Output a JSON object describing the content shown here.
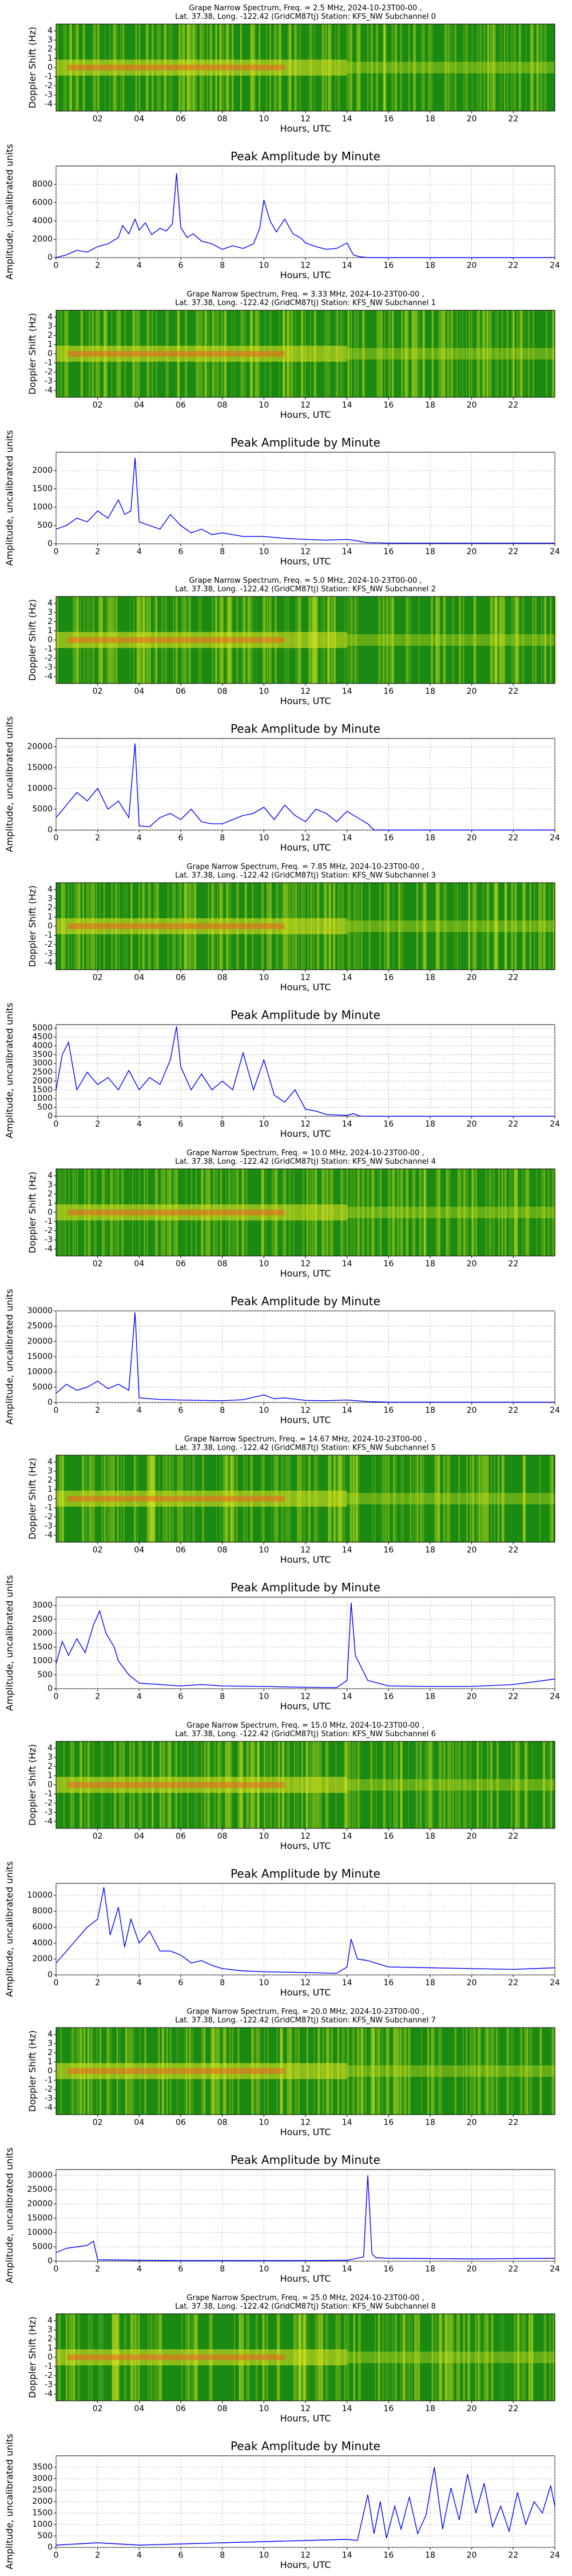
{
  "chart_data": [
    {
      "type": "heatmap",
      "title_line1": "Grape Narrow Spectrum, Freq. = 2.5 MHz, 2024-10-23T00-00 ,",
      "title_line2": "Lat. 37.38, Long. -122.42 (GridCM87tj) Station: KFS_NW Subchannel 0",
      "xlabel": "Hours, UTC",
      "ylabel": "Doppler Shift (Hz)",
      "xticks": [
        "02",
        "04",
        "06",
        "08",
        "10",
        "12",
        "14",
        "16",
        "18",
        "20",
        "22"
      ],
      "yticks": [
        "4",
        "3",
        "2",
        "1",
        "0",
        "-1",
        "-2",
        "-3",
        "-4"
      ],
      "xlim": [
        0,
        24
      ],
      "ylim": [
        -5,
        5
      ],
      "colors": {
        "low": "#108010",
        "mid": "#b8d810",
        "high": "#f0e020",
        "peak": "#f04010"
      }
    },
    {
      "type": "line",
      "title": "Peak Amplitude by Minute",
      "xlabel": "Hours, UTC",
      "ylabel": "Amplitude, uncalibrated units",
      "xlim": [
        0,
        24
      ],
      "ylim": [
        0,
        10000
      ],
      "yticks": [
        0,
        2000,
        4000,
        6000,
        8000
      ],
      "xticks": [
        0,
        2,
        4,
        6,
        8,
        10,
        12,
        14,
        16,
        18,
        20,
        22,
        24
      ],
      "grid": true,
      "line_color": "#0000ff",
      "x": [
        0,
        0.5,
        1,
        1.5,
        2,
        2.5,
        3,
        3.2,
        3.5,
        3.8,
        4,
        4.3,
        4.6,
        5,
        5.3,
        5.6,
        5.8,
        6,
        6.3,
        6.6,
        7,
        7.5,
        8,
        8.5,
        9,
        9.5,
        9.8,
        10,
        10.3,
        10.6,
        11,
        11.4,
        11.8,
        12,
        12.5,
        13,
        13.5,
        14,
        14.3,
        14.6,
        15,
        16,
        18,
        20,
        22,
        24
      ],
      "y": [
        0,
        300,
        800,
        600,
        1200,
        1500,
        2200,
        3500,
        2600,
        4200,
        3000,
        3800,
        2500,
        3200,
        2900,
        3700,
        9200,
        3300,
        2200,
        2600,
        1800,
        1500,
        900,
        1300,
        1000,
        1500,
        3200,
        6300,
        4000,
        2800,
        4200,
        2600,
        2100,
        1600,
        1200,
        900,
        1000,
        1600,
        300,
        100,
        0,
        0,
        0,
        0,
        0,
        0
      ]
    },
    {
      "type": "heatmap",
      "title_line1": "Grape Narrow Spectrum, Freq. = 3.33 MHz, 2024-10-23T00-00 ,",
      "title_line2": "Lat. 37.38, Long. -122.42 (GridCM87tj) Station: KFS_NW Subchannel 1",
      "xlabel": "Hours, UTC",
      "ylabel": "Doppler Shift (Hz)",
      "xticks": [
        "02",
        "04",
        "06",
        "08",
        "10",
        "12",
        "14",
        "16",
        "18",
        "20",
        "22"
      ],
      "yticks": [
        "4",
        "3",
        "2",
        "1",
        "0",
        "-1",
        "-2",
        "-3",
        "-4"
      ],
      "xlim": [
        0,
        24
      ],
      "ylim": [
        -5,
        5
      ]
    },
    {
      "type": "line",
      "title": "Peak Amplitude by Minute",
      "xlabel": "Hours, UTC",
      "ylabel": "Amplitude, uncalibrated units",
      "xlim": [
        0,
        24
      ],
      "ylim": [
        0,
        2500
      ],
      "yticks": [
        0,
        500,
        1000,
        1500,
        2000
      ],
      "xticks": [
        0,
        2,
        4,
        6,
        8,
        10,
        12,
        14,
        16,
        18,
        20,
        22,
        24
      ],
      "grid": true,
      "line_color": "#0000ff",
      "x": [
        0,
        0.5,
        1,
        1.5,
        2,
        2.5,
        3,
        3.3,
        3.6,
        3.8,
        4,
        4.5,
        5,
        5.5,
        6,
        6.5,
        7,
        7.5,
        8,
        9,
        10,
        11,
        12,
        13,
        14,
        14.5,
        15,
        16,
        18,
        20,
        22,
        24
      ],
      "y": [
        400,
        500,
        700,
        600,
        900,
        700,
        1200,
        800,
        900,
        2350,
        600,
        500,
        400,
        800,
        500,
        300,
        400,
        250,
        300,
        200,
        200,
        150,
        120,
        100,
        120,
        80,
        30,
        20,
        20,
        20,
        20,
        20
      ]
    },
    {
      "type": "heatmap",
      "title_line1": "Grape Narrow Spectrum, Freq. = 5.0 MHz, 2024-10-23T00-00 ,",
      "title_line2": "Lat. 37.38, Long. -122.42 (GridCM87tj) Station: KFS_NW Subchannel 2",
      "xlabel": "Hours, UTC",
      "ylabel": "Doppler Shift (Hz)",
      "xticks": [
        "02",
        "04",
        "06",
        "08",
        "10",
        "12",
        "14",
        "16",
        "18",
        "20",
        "22"
      ],
      "yticks": [
        "4",
        "3",
        "2",
        "1",
        "0",
        "-1",
        "-2",
        "-3",
        "-4"
      ],
      "xlim": [
        0,
        24
      ],
      "ylim": [
        -5,
        5
      ]
    },
    {
      "type": "line",
      "title": "Peak Amplitude by Minute",
      "xlabel": "Hours, UTC",
      "ylabel": "Amplitude, uncalibrated units",
      "xlim": [
        0,
        24
      ],
      "ylim": [
        0,
        22000
      ],
      "yticks": [
        0,
        5000,
        10000,
        15000,
        20000
      ],
      "xticks": [
        0,
        2,
        4,
        6,
        8,
        10,
        12,
        14,
        16,
        18,
        20,
        22,
        24
      ],
      "grid": true,
      "line_color": "#0000ff",
      "x": [
        0,
        0.5,
        1,
        1.5,
        2,
        2.5,
        3,
        3.5,
        3.8,
        4,
        4.5,
        5,
        5.5,
        6,
        6.5,
        7,
        7.5,
        8,
        8.5,
        9,
        9.5,
        10,
        10.5,
        11,
        11.5,
        12,
        12.5,
        13,
        13.5,
        14,
        14.5,
        15,
        15.3,
        16,
        18,
        20,
        22,
        24
      ],
      "y": [
        3000,
        6000,
        9000,
        7000,
        10000,
        5000,
        7000,
        3000,
        20800,
        1000,
        800,
        3000,
        4000,
        2500,
        5000,
        2000,
        1500,
        1500,
        2500,
        3500,
        4000,
        5500,
        2500,
        6000,
        3500,
        2000,
        5000,
        4000,
        2000,
        4500,
        3000,
        1500,
        0,
        0,
        0,
        0,
        0,
        0
      ]
    },
    {
      "type": "heatmap",
      "title_line1": "Grape Narrow Spectrum, Freq. = 7.85 MHz, 2024-10-23T00-00 ,",
      "title_line2": "Lat. 37.38, Long. -122.42 (GridCM87tj) Station: KFS_NW Subchannel 3",
      "xlabel": "Hours, UTC",
      "ylabel": "Doppler Shift (Hz)",
      "xticks": [
        "02",
        "04",
        "06",
        "08",
        "10",
        "12",
        "14",
        "16",
        "18",
        "20",
        "22"
      ],
      "yticks": [
        "4",
        "3",
        "2",
        "1",
        "0",
        "-1",
        "-2",
        "-3",
        "-4"
      ],
      "xlim": [
        0,
        24
      ],
      "ylim": [
        -5,
        5
      ]
    },
    {
      "type": "line",
      "title": "Peak Amplitude by Minute",
      "xlabel": "Hours, UTC",
      "ylabel": "Amplitude, uncalibrated units",
      "xlim": [
        0,
        24
      ],
      "ylim": [
        0,
        5200
      ],
      "yticks": [
        0,
        500,
        1000,
        1500,
        2000,
        2500,
        3000,
        3500,
        4000,
        4500,
        5000
      ],
      "xticks": [
        0,
        2,
        4,
        6,
        8,
        10,
        12,
        14,
        16,
        18,
        20,
        22,
        24
      ],
      "grid": true,
      "line_color": "#0000ff",
      "x": [
        0,
        0.3,
        0.6,
        1,
        1.5,
        2,
        2.5,
        3,
        3.5,
        4,
        4.5,
        5,
        5.5,
        5.8,
        6,
        6.5,
        7,
        7.5,
        8,
        8.5,
        9,
        9.5,
        10,
        10.5,
        11,
        11.5,
        12,
        12.5,
        13,
        14,
        14.3,
        14.6,
        15,
        16,
        18,
        20,
        22,
        24
      ],
      "y": [
        1500,
        3500,
        4200,
        1500,
        2500,
        1800,
        2200,
        1500,
        2600,
        1500,
        2200,
        1800,
        3200,
        5100,
        2800,
        1500,
        2400,
        1500,
        2000,
        1500,
        3600,
        1500,
        3200,
        1200,
        800,
        1500,
        400,
        300,
        100,
        50,
        150,
        20,
        0,
        0,
        0,
        0,
        0,
        0
      ]
    },
    {
      "type": "heatmap",
      "title_line1": "Grape Narrow Spectrum, Freq. = 10.0 MHz, 2024-10-23T00-00 ,",
      "title_line2": "Lat. 37.38, Long. -122.42 (GridCM87tj) Station: KFS_NW Subchannel 4",
      "xlabel": "Hours, UTC",
      "ylabel": "Doppler Shift (Hz)",
      "xticks": [
        "02",
        "04",
        "06",
        "08",
        "10",
        "12",
        "14",
        "16",
        "18",
        "20",
        "22"
      ],
      "yticks": [
        "4",
        "3",
        "2",
        "1",
        "0",
        "-1",
        "-2",
        "-3",
        "-4"
      ],
      "xlim": [
        0,
        24
      ],
      "ylim": [
        -5,
        5
      ]
    },
    {
      "type": "line",
      "title": "Peak Amplitude by Minute",
      "xlabel": "Hours, UTC",
      "ylabel": "Amplitude, uncalibrated units",
      "xlim": [
        0,
        24
      ],
      "ylim": [
        0,
        30000
      ],
      "yticks": [
        0,
        5000,
        10000,
        15000,
        20000,
        25000,
        30000
      ],
      "xticks": [
        0,
        2,
        4,
        6,
        8,
        10,
        12,
        14,
        16,
        18,
        20,
        22,
        24
      ],
      "grid": true,
      "line_color": "#0000ff",
      "x": [
        0,
        0.5,
        1,
        1.5,
        2,
        2.5,
        3,
        3.5,
        3.8,
        4,
        5,
        6,
        7,
        8,
        9,
        10,
        10.5,
        11,
        12,
        13,
        14,
        15,
        16,
        18,
        20,
        22,
        24
      ],
      "y": [
        3000,
        6000,
        4000,
        5000,
        7000,
        4500,
        6000,
        4000,
        29500,
        1500,
        1000,
        800,
        700,
        600,
        900,
        2500,
        1200,
        1500,
        700,
        600,
        800,
        300,
        100,
        100,
        100,
        100,
        100
      ]
    },
    {
      "type": "heatmap",
      "title_line1": "Grape Narrow Spectrum, Freq. = 14.67 MHz, 2024-10-23T00-00 ,",
      "title_line2": "Lat. 37.38, Long. -122.42 (GridCM87tj) Station: KFS_NW Subchannel 5",
      "xlabel": "Hours, UTC",
      "ylabel": "Doppler Shift (Hz)",
      "xticks": [
        "02",
        "04",
        "06",
        "08",
        "10",
        "12",
        "14",
        "16",
        "18",
        "20",
        "22"
      ],
      "yticks": [
        "4",
        "3",
        "2",
        "1",
        "0",
        "-1",
        "-2",
        "-3",
        "-4"
      ],
      "xlim": [
        0,
        24
      ],
      "ylim": [
        -5,
        5
      ]
    },
    {
      "type": "line",
      "title": "Peak Amplitude by Minute",
      "xlabel": "Hours, UTC",
      "ylabel": "Amplitude, uncalibrated units",
      "xlim": [
        0,
        24
      ],
      "ylim": [
        0,
        3300
      ],
      "yticks": [
        0,
        500,
        1000,
        1500,
        2000,
        2500,
        3000
      ],
      "xticks": [
        0,
        2,
        4,
        6,
        8,
        10,
        12,
        14,
        16,
        18,
        20,
        22,
        24
      ],
      "grid": true,
      "line_color": "#0000ff",
      "x": [
        0,
        0.3,
        0.6,
        1,
        1.4,
        1.8,
        2.1,
        2.4,
        2.8,
        3,
        3.5,
        4,
        5,
        6,
        7,
        8,
        10,
        12,
        13.5,
        14,
        14.2,
        14.4,
        14.6,
        15,
        16,
        18,
        20,
        22,
        23,
        24
      ],
      "y": [
        900,
        1700,
        1200,
        1800,
        1300,
        2300,
        2800,
        2000,
        1500,
        1000,
        500,
        200,
        150,
        100,
        150,
        100,
        80,
        50,
        40,
        300,
        3100,
        1200,
        900,
        300,
        100,
        80,
        80,
        150,
        250,
        350
      ]
    },
    {
      "type": "heatmap",
      "title_line1": "Grape Narrow Spectrum, Freq. = 15.0 MHz, 2024-10-23T00-00 ,",
      "title_line2": "Lat. 37.38, Long. -122.42 (GridCM87tj) Station: KFS_NW Subchannel 6",
      "xlabel": "Hours, UTC",
      "ylabel": "Doppler Shift (Hz)",
      "xticks": [
        "02",
        "04",
        "06",
        "08",
        "10",
        "12",
        "14",
        "16",
        "18",
        "20",
        "22"
      ],
      "yticks": [
        "4",
        "3",
        "2",
        "1",
        "0",
        "-1",
        "-2",
        "-3",
        "-4"
      ],
      "xlim": [
        0,
        24
      ],
      "ylim": [
        -5,
        5
      ]
    },
    {
      "type": "line",
      "title": "Peak Amplitude by Minute",
      "xlabel": "Hours, UTC",
      "ylabel": "Amplitude, uncalibrated units",
      "xlim": [
        0,
        24
      ],
      "ylim": [
        0,
        11500
      ],
      "yticks": [
        0,
        2000,
        4000,
        6000,
        8000,
        10000
      ],
      "xticks": [
        0,
        2,
        4,
        6,
        8,
        10,
        12,
        14,
        16,
        18,
        20,
        22,
        24
      ],
      "grid": true,
      "line_color": "#0000ff",
      "x": [
        0,
        0.5,
        1,
        1.5,
        2,
        2.3,
        2.6,
        3,
        3.3,
        3.6,
        4,
        4.5,
        5,
        5.5,
        6,
        6.5,
        7,
        7.5,
        8,
        9,
        10,
        12,
        13.5,
        14,
        14.2,
        14.5,
        15,
        16,
        18,
        20,
        22,
        24
      ],
      "y": [
        1500,
        3000,
        4500,
        6000,
        7000,
        11000,
        5000,
        8500,
        3500,
        7000,
        4000,
        5500,
        3000,
        3000,
        2500,
        1500,
        1800,
        1200,
        800,
        500,
        400,
        300,
        200,
        1000,
        4500,
        2000,
        1800,
        1000,
        900,
        800,
        700,
        900
      ]
    },
    {
      "type": "heatmap",
      "title_line1": "Grape Narrow Spectrum, Freq. = 20.0 MHz, 2024-10-23T00-00 ,",
      "title_line2": "Lat. 37.38, Long. -122.42 (GridCM87tj) Station: KFS_NW Subchannel 7",
      "xlabel": "Hours, UTC",
      "ylabel": "Doppler Shift (Hz)",
      "xticks": [
        "02",
        "04",
        "06",
        "08",
        "10",
        "12",
        "14",
        "16",
        "18",
        "20",
        "22"
      ],
      "yticks": [
        "4",
        "3",
        "2",
        "1",
        "0",
        "-1",
        "-2",
        "-3",
        "-4"
      ],
      "xlim": [
        0,
        24
      ],
      "ylim": [
        -5,
        5
      ]
    },
    {
      "type": "line",
      "title": "Peak Amplitude by Minute",
      "xlabel": "Hours, UTC",
      "ylabel": "Amplitude, uncalibrated units",
      "xlim": [
        0,
        24
      ],
      "ylim": [
        0,
        32000
      ],
      "yticks": [
        0,
        5000,
        10000,
        15000,
        20000,
        25000,
        30000
      ],
      "xticks": [
        0,
        2,
        4,
        6,
        8,
        10,
        12,
        14,
        16,
        18,
        20,
        22,
        24
      ],
      "grid": true,
      "line_color": "#0000ff",
      "x": [
        0,
        0.5,
        1,
        1.5,
        1.8,
        2,
        4,
        6,
        8,
        10,
        12,
        14,
        14.8,
        15,
        15.2,
        15.4,
        16,
        18,
        20,
        22,
        24
      ],
      "y": [
        3000,
        4500,
        5000,
        5500,
        7000,
        500,
        300,
        200,
        200,
        200,
        200,
        300,
        1500,
        30000,
        2500,
        1200,
        1000,
        900,
        800,
        900,
        1000
      ]
    },
    {
      "type": "heatmap",
      "title_line1": "Grape Narrow Spectrum, Freq. = 25.0 MHz, 2024-10-23T00-00 ,",
      "title_line2": "Lat. 37.38, Long. -122.42 (GridCM87tj) Station: KFS_NW Subchannel 8",
      "xlabel": "Hours, UTC",
      "ylabel": "Doppler Shift (Hz)",
      "xticks": [
        "02",
        "04",
        "06",
        "08",
        "10",
        "12",
        "14",
        "16",
        "18",
        "20",
        "22"
      ],
      "yticks": [
        "4",
        "3",
        "2",
        "1",
        "0",
        "-1",
        "-2",
        "-3",
        "-4"
      ],
      "xlim": [
        0,
        24
      ],
      "ylim": [
        -5,
        5
      ]
    },
    {
      "type": "line",
      "title": "Peak Amplitude by Minute",
      "xlabel": "Hours, UTC",
      "ylabel": "Amplitude, uncalibrated units",
      "xlim": [
        0,
        24
      ],
      "ylim": [
        0,
        4000
      ],
      "yticks": [
        0,
        500,
        1000,
        1500,
        2000,
        2500,
        3000,
        3500
      ],
      "xticks": [
        0,
        2,
        4,
        6,
        8,
        10,
        12,
        14,
        16,
        18,
        20,
        22,
        24
      ],
      "grid": true,
      "line_color": "#0000ff",
      "x": [
        0,
        1,
        2,
        3,
        4,
        6,
        8,
        10,
        12,
        14,
        14.5,
        15,
        15.3,
        15.6,
        15.9,
        16.3,
        16.6,
        17,
        17.4,
        17.8,
        18.2,
        18.6,
        19,
        19.4,
        19.8,
        20.2,
        20.6,
        21,
        21.4,
        21.8,
        22.2,
        22.6,
        23,
        23.4,
        23.8,
        24
      ],
      "y": [
        100,
        150,
        200,
        150,
        100,
        150,
        200,
        250,
        300,
        350,
        300,
        2300,
        600,
        2000,
        400,
        1800,
        800,
        2200,
        600,
        1400,
        3500,
        800,
        2600,
        1200,
        3200,
        1500,
        2800,
        900,
        1800,
        700,
        2400,
        1000,
        2000,
        1500,
        2700,
        1800
      ]
    }
  ]
}
